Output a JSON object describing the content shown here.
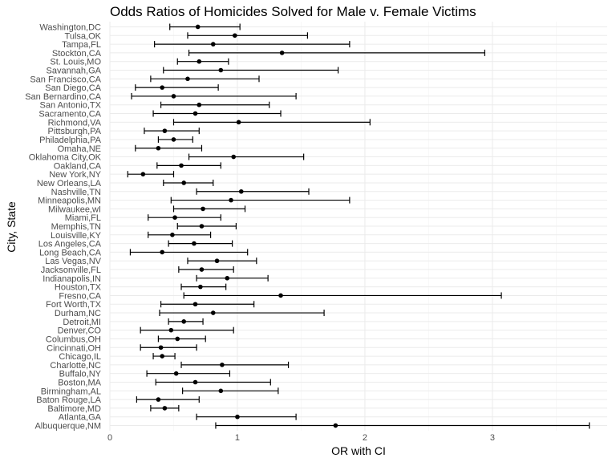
{
  "chart_data": {
    "type": "scatter",
    "title": "Odds Ratios of Homicides Solved for Male v. Female Victims",
    "xlabel": "OR with CI",
    "ylabel": "City, State",
    "xlim": [
      0,
      3.9
    ],
    "xticks": [
      "0",
      "1",
      "2",
      "3"
    ],
    "grid": true,
    "points": [
      {
        "city": "Albuquerque,NM",
        "or": 1.77,
        "lo": 0.83,
        "hi": 3.76
      },
      {
        "city": "Atlanta,GA",
        "or": 1.0,
        "lo": 0.68,
        "hi": 1.46
      },
      {
        "city": "Baltimore,MD",
        "or": 0.43,
        "lo": 0.32,
        "hi": 0.54
      },
      {
        "city": "Baton Rouge,LA",
        "or": 0.38,
        "lo": 0.21,
        "hi": 0.7
      },
      {
        "city": "Birmingham,AL",
        "or": 0.87,
        "lo": 0.57,
        "hi": 1.32
      },
      {
        "city": "Boston,MA",
        "or": 0.67,
        "lo": 0.36,
        "hi": 1.26
      },
      {
        "city": "Buffalo,NY",
        "or": 0.52,
        "lo": 0.29,
        "hi": 0.94
      },
      {
        "city": "Charlotte,NC",
        "or": 0.88,
        "lo": 0.56,
        "hi": 1.4
      },
      {
        "city": "Chicago,IL",
        "or": 0.41,
        "lo": 0.34,
        "hi": 0.51
      },
      {
        "city": "Cincinnati,OH",
        "or": 0.4,
        "lo": 0.24,
        "hi": 0.68
      },
      {
        "city": "Columbus,OH",
        "or": 0.53,
        "lo": 0.38,
        "hi": 0.75
      },
      {
        "city": "Denver,CO",
        "or": 0.48,
        "lo": 0.24,
        "hi": 0.97
      },
      {
        "city": "Detroit,MI",
        "or": 0.58,
        "lo": 0.46,
        "hi": 0.73
      },
      {
        "city": "Durham,NC",
        "or": 0.81,
        "lo": 0.39,
        "hi": 1.68
      },
      {
        "city": "Fort Worth,TX",
        "or": 0.67,
        "lo": 0.4,
        "hi": 1.13
      },
      {
        "city": "Fresno,CA",
        "or": 1.34,
        "lo": 0.58,
        "hi": 3.07
      },
      {
        "city": "Houston,TX",
        "or": 0.71,
        "lo": 0.56,
        "hi": 0.91
      },
      {
        "city": "Indianapolis,IN",
        "or": 0.92,
        "lo": 0.68,
        "hi": 1.24
      },
      {
        "city": "Jacksonville,FL",
        "or": 0.72,
        "lo": 0.54,
        "hi": 0.97
      },
      {
        "city": "Las Vegas,NV",
        "or": 0.84,
        "lo": 0.61,
        "hi": 1.15
      },
      {
        "city": "Long Beach,CA",
        "or": 0.41,
        "lo": 0.16,
        "hi": 1.08
      },
      {
        "city": "Los Angeles,CA",
        "or": 0.66,
        "lo": 0.46,
        "hi": 0.96
      },
      {
        "city": "Louisville,KY",
        "or": 0.49,
        "lo": 0.3,
        "hi": 0.79
      },
      {
        "city": "Memphis,TN",
        "or": 0.72,
        "lo": 0.53,
        "hi": 0.99
      },
      {
        "city": "Miami,FL",
        "or": 0.51,
        "lo": 0.3,
        "hi": 0.87
      },
      {
        "city": "Milwaukee,wI",
        "or": 0.73,
        "lo": 0.5,
        "hi": 1.06
      },
      {
        "city": "Minneapolis,MN",
        "or": 0.95,
        "lo": 0.48,
        "hi": 1.88
      },
      {
        "city": "Nashville,TN",
        "or": 1.03,
        "lo": 0.68,
        "hi": 1.56
      },
      {
        "city": "New Orleans,LA",
        "or": 0.58,
        "lo": 0.42,
        "hi": 0.81
      },
      {
        "city": "New York,NY",
        "or": 0.26,
        "lo": 0.14,
        "hi": 0.5
      },
      {
        "city": "Oakland,CA",
        "or": 0.56,
        "lo": 0.37,
        "hi": 0.87
      },
      {
        "city": "Oklahoma City,OK",
        "or": 0.97,
        "lo": 0.62,
        "hi": 1.52
      },
      {
        "city": "Omaha,NE",
        "or": 0.38,
        "lo": 0.2,
        "hi": 0.72
      },
      {
        "city": "Philadelphia,PA",
        "or": 0.5,
        "lo": 0.38,
        "hi": 0.65
      },
      {
        "city": "Pittsburgh,PA",
        "or": 0.43,
        "lo": 0.27,
        "hi": 0.7
      },
      {
        "city": "Richmond,VA",
        "or": 1.01,
        "lo": 0.5,
        "hi": 2.04
      },
      {
        "city": "Sacramento,CA",
        "or": 0.67,
        "lo": 0.34,
        "hi": 1.34
      },
      {
        "city": "San Antonio,TX",
        "or": 0.7,
        "lo": 0.4,
        "hi": 1.25
      },
      {
        "city": "San Bernardino,CA",
        "or": 0.5,
        "lo": 0.17,
        "hi": 1.46
      },
      {
        "city": "San Diego,CA",
        "or": 0.41,
        "lo": 0.2,
        "hi": 0.85
      },
      {
        "city": "San Francisco,CA",
        "or": 0.61,
        "lo": 0.32,
        "hi": 1.17
      },
      {
        "city": "Savannah,GA",
        "or": 0.87,
        "lo": 0.42,
        "hi": 1.79
      },
      {
        "city": "St. Louis,MO",
        "or": 0.7,
        "lo": 0.53,
        "hi": 0.93
      },
      {
        "city": "Stockton,CA",
        "or": 1.35,
        "lo": 0.62,
        "hi": 2.94
      },
      {
        "city": "Tampa,FL",
        "or": 0.81,
        "lo": 0.35,
        "hi": 1.88
      },
      {
        "city": "Tulsa,OK",
        "or": 0.98,
        "lo": 0.61,
        "hi": 1.55
      },
      {
        "city": "Washington,DC",
        "or": 0.69,
        "lo": 0.47,
        "hi": 1.02
      }
    ]
  }
}
